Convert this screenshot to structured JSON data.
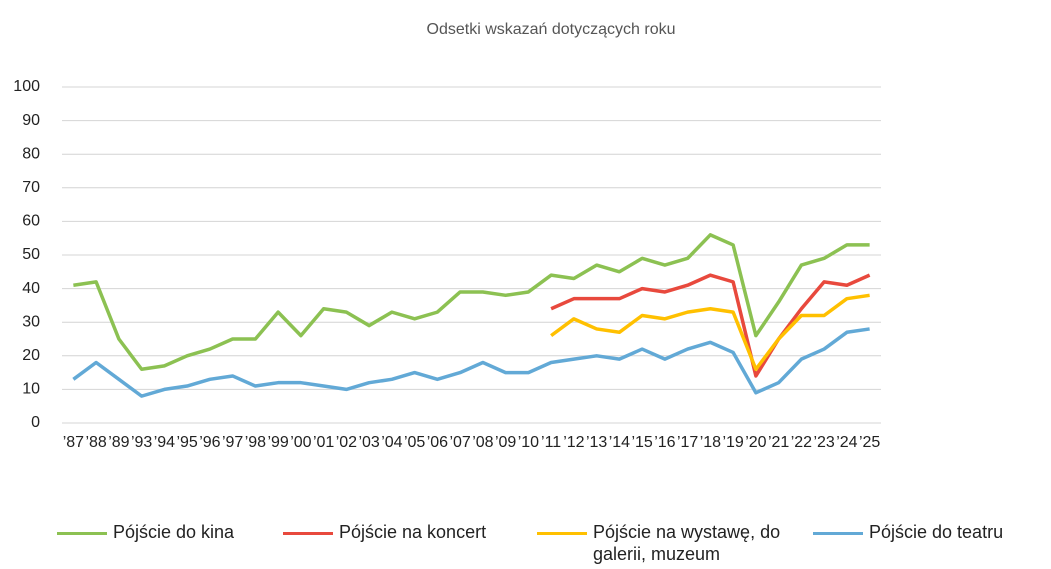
{
  "chart_data": {
    "type": "line",
    "title": "Odsetki wskazań dotyczących roku",
    "categories": [
      "’87",
      "’88",
      "’89",
      "’93",
      "’94",
      "’95",
      "’96",
      "’97",
      "’98",
      "’99",
      "’00",
      "’01",
      "’02",
      "’03",
      "’04",
      "’05",
      "’06",
      "’07",
      "’08",
      "’09",
      "’10",
      "’11",
      "’12",
      "’13",
      "’14",
      "’15",
      "’16",
      "’17",
      "’18",
      "’19",
      "’20",
      "’21",
      "’22",
      "’23",
      "’24",
      "’25"
    ],
    "series": [
      {
        "name": "Pójście do kina",
        "color": "#8cc152",
        "values": [
          41,
          42,
          25,
          16,
          17,
          20,
          22,
          25,
          25,
          33,
          26,
          34,
          33,
          29,
          33,
          31,
          33,
          39,
          39,
          38,
          39,
          44,
          43,
          47,
          45,
          49,
          47,
          49,
          56,
          53,
          26,
          36,
          47,
          49,
          53,
          53
        ]
      },
      {
        "name": "Pójście na koncert",
        "color": "#e8493d",
        "values": [
          null,
          null,
          null,
          null,
          null,
          null,
          null,
          null,
          null,
          null,
          null,
          null,
          null,
          null,
          null,
          null,
          null,
          null,
          null,
          null,
          null,
          34,
          37,
          37,
          37,
          40,
          39,
          41,
          44,
          42,
          14,
          25,
          34,
          42,
          41,
          44
        ]
      },
      {
        "name": "Pójście na wystawę, do galerii, muzeum",
        "color": "#ffc000",
        "values": [
          null,
          null,
          null,
          null,
          null,
          null,
          null,
          null,
          null,
          null,
          null,
          null,
          null,
          null,
          null,
          null,
          null,
          null,
          null,
          null,
          null,
          26,
          31,
          28,
          27,
          32,
          31,
          33,
          34,
          33,
          16,
          25,
          32,
          32,
          37,
          38
        ]
      },
      {
        "name": "Pójście do teatru",
        "color": "#62a9d6",
        "values": [
          13,
          18,
          13,
          8,
          10,
          11,
          13,
          14,
          11,
          12,
          12,
          11,
          10,
          12,
          13,
          15,
          13,
          15,
          18,
          15,
          15,
          18,
          19,
          20,
          19,
          22,
          19,
          22,
          24,
          21,
          9,
          12,
          19,
          22,
          27,
          28
        ]
      }
    ],
    "ylim": [
      0,
      100
    ],
    "yticks": [
      0,
      10,
      20,
      30,
      40,
      50,
      60,
      70,
      80,
      90,
      100
    ],
    "grid": true,
    "legend": "bottom"
  }
}
